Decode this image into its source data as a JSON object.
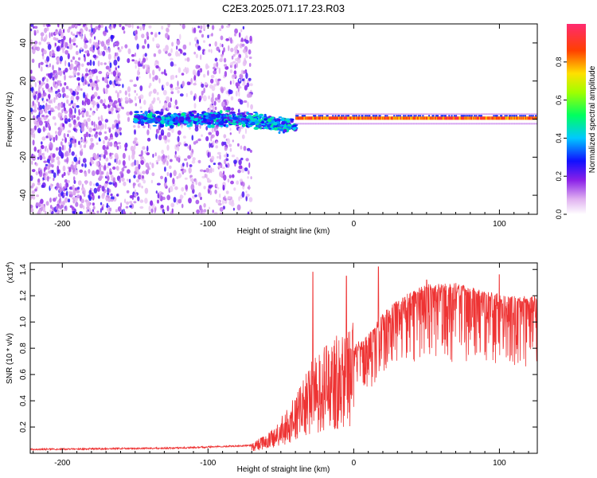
{
  "title": "C2E3.2025.071.17.23.R03",
  "chart_data": [
    {
      "type": "heatmap",
      "name": "spectrogram",
      "xlabel": "Height of straight line (km)",
      "ylabel": "Frequency (Hz)",
      "xlim": [
        -222,
        126
      ],
      "ylim": [
        -50,
        50
      ],
      "xticks": [
        -200,
        -100,
        0,
        100
      ],
      "xtick_labels": [
        "-200",
        "-100",
        "0",
        "100"
      ],
      "yticks": [
        -40,
        -20,
        0,
        20,
        40
      ],
      "ytick_labels": [
        "-40",
        "-20",
        "0",
        "20",
        "40"
      ],
      "colorbar": {
        "label": "Normalized spectral amplitude",
        "range": [
          0,
          1
        ],
        "ticks": [
          0,
          0.2,
          0.4,
          0.6,
          0.8
        ],
        "tick_labels": [
          "0.0",
          "0.2",
          "0.4",
          "0.6",
          "0.8"
        ]
      },
      "regions": [
        {
          "x": [
            -222,
            -70
          ],
          "description": "scattered noise",
          "amplitude": 0.15
        },
        {
          "x": [
            -150,
            -40
          ],
          "center_hz": 0,
          "spread_hz": 6,
          "amplitude": 0.35
        },
        {
          "x": [
            -40,
            126
          ],
          "center_hz": 0.5,
          "spread_hz": 1.5,
          "amplitude": 0.9
        }
      ]
    },
    {
      "type": "line",
      "name": "snr",
      "xlabel": "Height of straight line (km)",
      "ylabel": "SNR (10 * v/v)",
      "yscale_label": "(x10",
      "yscale_exp": "4",
      "yscale_close": ")",
      "xlim": [
        -222,
        126
      ],
      "ylim": [
        0,
        1.45
      ],
      "xticks": [
        -200,
        -100,
        0,
        100
      ],
      "xtick_labels": [
        "-200",
        "-100",
        "0",
        "100"
      ],
      "yticks": [
        0.2,
        0.4,
        0.6,
        0.8,
        1.0,
        1.2,
        1.4
      ],
      "ytick_labels": [
        "0.2",
        "0.4",
        "0.6",
        "0.8",
        "1.0",
        "1.2",
        "1.4"
      ],
      "color": "#ee3333",
      "envelope_x": [
        -222,
        -120,
        -70,
        -55,
        -40,
        -30,
        -20,
        -10,
        0,
        10,
        20,
        30,
        40,
        50,
        60,
        70,
        80,
        90,
        100,
        110,
        126
      ],
      "envelope_y": [
        0.03,
        0.04,
        0.06,
        0.15,
        0.35,
        0.55,
        0.65,
        0.75,
        0.8,
        0.9,
        1.05,
        1.15,
        1.22,
        1.27,
        1.28,
        1.28,
        1.25,
        1.22,
        1.2,
        1.18,
        1.18
      ],
      "spikes": [
        [
          -28,
          1.38
        ],
        [
          -5,
          1.35
        ],
        [
          17,
          1.42
        ],
        [
          50,
          1.32
        ],
        [
          100,
          1.36
        ]
      ]
    }
  ]
}
